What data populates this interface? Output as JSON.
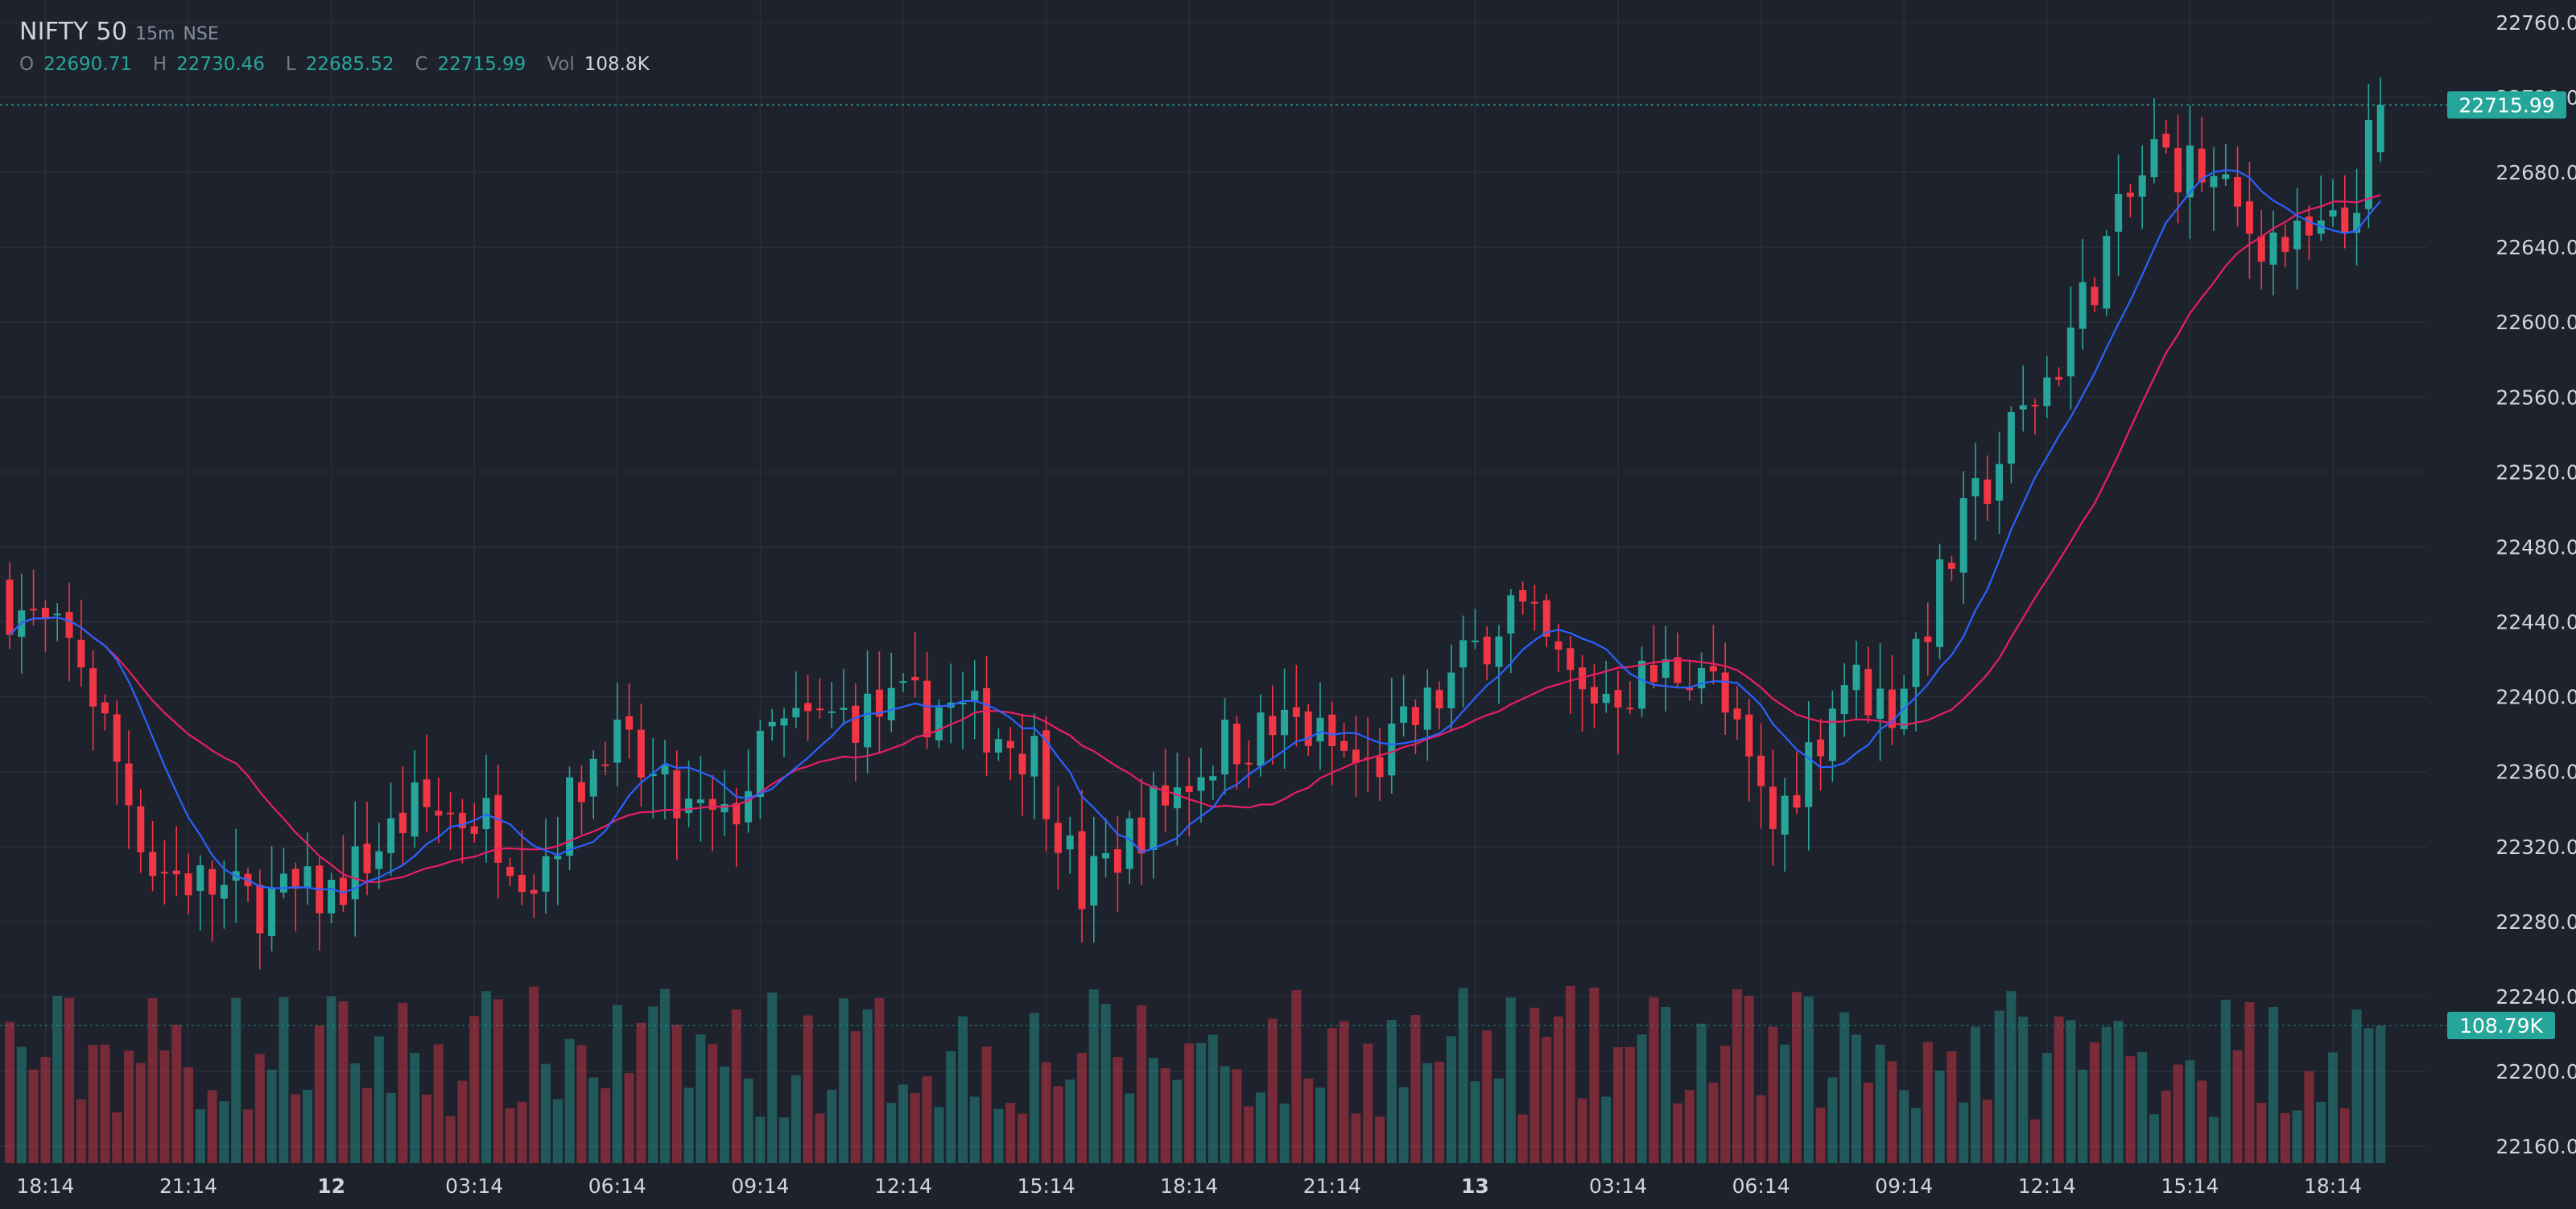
{
  "header": {
    "symbol": "NIFTY 50",
    "interval": "15m",
    "exchange": "NSE",
    "ohlc": {
      "open_label": "O",
      "open": "22690.71",
      "high_label": "H",
      "high": "22730.46",
      "low_label": "L",
      "low": "22685.52",
      "close_label": "C",
      "close": "22715.99",
      "vol_label": "Vol",
      "vol": "108.8K"
    }
  },
  "colors": {
    "background": "#1e222d",
    "grid": "#2a2e39",
    "up": "#26a69a",
    "down": "#f23645",
    "ma_fast": "#2962ff",
    "ma_slow": "#e91e63",
    "axis_text": "#d1d4dc"
  },
  "chart_data": {
    "type": "candlestick",
    "price_ticks": [
      "22760.00",
      "22720.00",
      "22680.00",
      "22640.00",
      "22600.00",
      "22560.00",
      "22520.00",
      "22480.00",
      "22440.00",
      "22400.00",
      "22360.00",
      "22320.00",
      "22280.00",
      "22240.00",
      "22200.00",
      "22160.00"
    ],
    "price_range": [
      22151,
      22772
    ],
    "time_labels": [
      {
        "label": "18:14",
        "bold": false,
        "index": 3
      },
      {
        "label": "21:14",
        "bold": false,
        "index": 15
      },
      {
        "label": "12",
        "bold": true,
        "index": 27
      },
      {
        "label": "03:14",
        "bold": false,
        "index": 39
      },
      {
        "label": "06:14",
        "bold": false,
        "index": 51
      },
      {
        "label": "09:14",
        "bold": false,
        "index": 63
      },
      {
        "label": "12:14",
        "bold": false,
        "index": 75
      },
      {
        "label": "15:14",
        "bold": false,
        "index": 87
      },
      {
        "label": "18:14",
        "bold": false,
        "index": 99
      },
      {
        "label": "21:14",
        "bold": false,
        "index": 111
      },
      {
        "label": "13",
        "bold": true,
        "index": 123
      },
      {
        "label": "03:14",
        "bold": false,
        "index": 135
      },
      {
        "label": "06:14",
        "bold": false,
        "index": 147
      },
      {
        "label": "09:14",
        "bold": false,
        "index": 159
      },
      {
        "label": "12:14",
        "bold": false,
        "index": 171
      },
      {
        "label": "15:14",
        "bold": false,
        "index": 183
      },
      {
        "label": "18:14",
        "bold": false,
        "index": 195
      }
    ],
    "last_price": 22715.99,
    "last_price_label": "22715.99",
    "last_volume_label": "108.79K",
    "close_path": [
      [
        0,
        22450
      ],
      [
        6,
        22420
      ],
      [
        12,
        22310
      ],
      [
        20,
        22290
      ],
      [
        27,
        22295
      ],
      [
        34,
        22340
      ],
      [
        40,
        22335
      ],
      [
        44,
        22305
      ],
      [
        50,
        22380
      ],
      [
        56,
        22340
      ],
      [
        60,
        22330
      ],
      [
        64,
        22380
      ],
      [
        70,
        22390
      ],
      [
        78,
        22395
      ],
      [
        82,
        22385
      ],
      [
        86,
        22370
      ],
      [
        90,
        22295
      ],
      [
        96,
        22340
      ],
      [
        102,
        22375
      ],
      [
        108,
        22385
      ],
      [
        114,
        22360
      ],
      [
        120,
        22400
      ],
      [
        126,
        22450
      ],
      [
        132,
        22400
      ],
      [
        138,
        22410
      ],
      [
        142,
        22420
      ],
      [
        148,
        22330
      ],
      [
        154,
        22410
      ],
      [
        158,
        22395
      ],
      [
        164,
        22490
      ],
      [
        168,
        22540
      ],
      [
        172,
        22580
      ],
      [
        176,
        22640
      ],
      [
        180,
        22690
      ],
      [
        184,
        22680
      ],
      [
        188,
        22650
      ],
      [
        192,
        22640
      ],
      [
        196,
        22650
      ],
      [
        199,
        22716
      ]
    ],
    "volume_range": [
      0,
      250000
    ]
  }
}
